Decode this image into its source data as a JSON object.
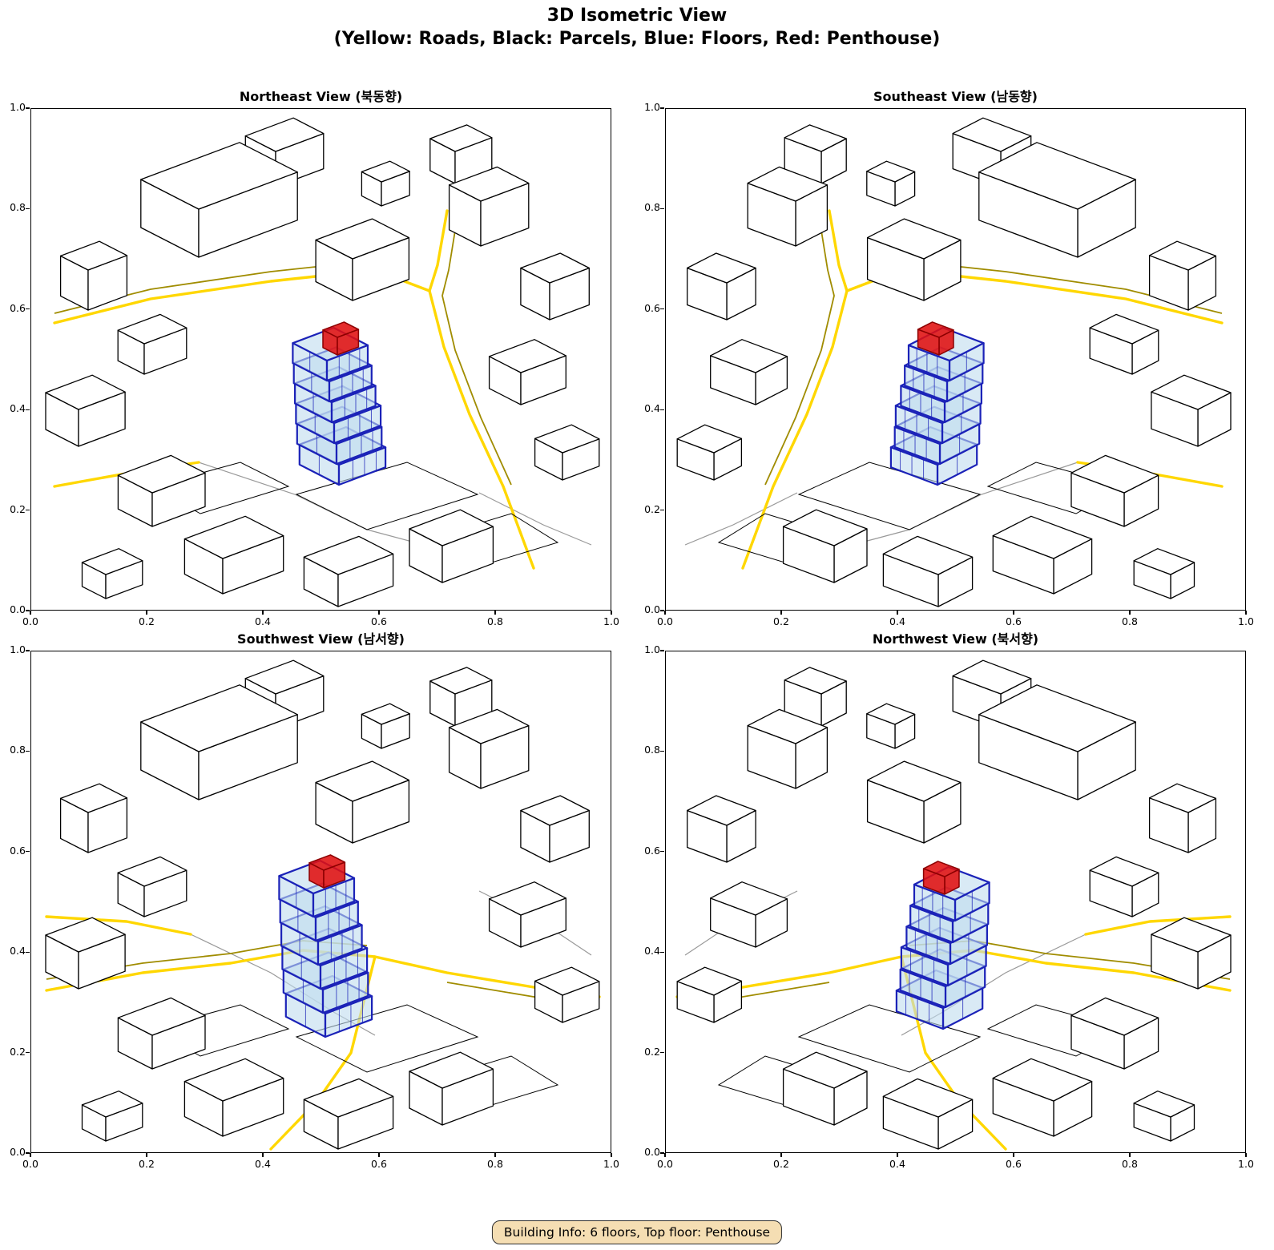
{
  "figure": {
    "title_line1": "3D Isometric View",
    "title_line2": "(Yellow: Roads, Black: Parcels, Blue: Floors, Red: Penthouse)"
  },
  "subplots": [
    {
      "key": "northeast",
      "title": "Northeast View (북동향)"
    },
    {
      "key": "southeast",
      "title": "Southeast View (남동향)"
    },
    {
      "key": "southwest",
      "title": "Southwest View (남서향)"
    },
    {
      "key": "northwest",
      "title": "Northwest View (북서향)"
    }
  ],
  "axes": {
    "xticks": [
      "0.0",
      "0.2",
      "0.4",
      "0.6",
      "0.8",
      "1.0"
    ],
    "yticks": [
      "0.0",
      "0.2",
      "0.4",
      "0.6",
      "0.8",
      "1.0"
    ],
    "xlim": [
      0,
      1
    ],
    "ylim": [
      0,
      1
    ]
  },
  "colors": {
    "road": "#FFD700",
    "road_dark": "#A08C00",
    "parcel_edge": "#000000",
    "boundary_gray": "#999999",
    "building_fill": "#FFFFFF",
    "floor_fill": "#BFDCEE",
    "floor_edge": "#1B22B8",
    "penthouse_fill": "#E01010",
    "penthouse_edge": "#8B0000",
    "badge_bg": "#F5DEB3",
    "badge_border": "#2F2F2F"
  },
  "badge": {
    "text": "Building Info: 6 floors, Top floor: Penthouse"
  },
  "building_info": {
    "floors": "6",
    "top_floor": "Penthouse"
  }
}
